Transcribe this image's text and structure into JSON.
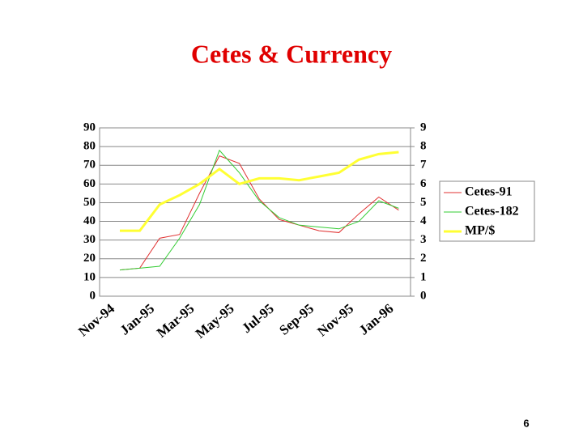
{
  "chart_data": {
    "type": "line",
    "title": "Cetes & Currency",
    "categories": [
      "Nov-94",
      null,
      "Jan-95",
      null,
      "Mar-95",
      null,
      "May-95",
      null,
      "Jul-95",
      null,
      "Sep-95",
      null,
      "Nov-95",
      null,
      "Jan-96"
    ],
    "series": [
      {
        "name": "Cetes-91",
        "color": "#e03030",
        "values": [
          14,
          15,
          31,
          33,
          55,
          75,
          71,
          52,
          41,
          38,
          35,
          34,
          44,
          53,
          46
        ]
      },
      {
        "name": "Cetes-182",
        "color": "#33cc33",
        "values": [
          14,
          15,
          16,
          31,
          49,
          78,
          66,
          51,
          42,
          38,
          37,
          36,
          40,
          51,
          47
        ]
      },
      {
        "name": "MP/$",
        "color": "#ffff33",
        "axis": "y2",
        "values": [
          3.5,
          3.5,
          4.9,
          5.4,
          6.0,
          6.8,
          6.0,
          6.3,
          6.3,
          6.2,
          6.4,
          6.6,
          7.3,
          7.6,
          7.7
        ]
      }
    ],
    "ylim": [
      0,
      90
    ],
    "yticks": [
      0,
      10,
      20,
      30,
      40,
      50,
      60,
      70,
      80,
      90
    ],
    "y2lim": [
      0,
      9
    ],
    "y2ticks": [
      0,
      1,
      2,
      3,
      4,
      5,
      6,
      7,
      8,
      9
    ],
    "grid": true,
    "legend": "right",
    "page_number": "6"
  }
}
